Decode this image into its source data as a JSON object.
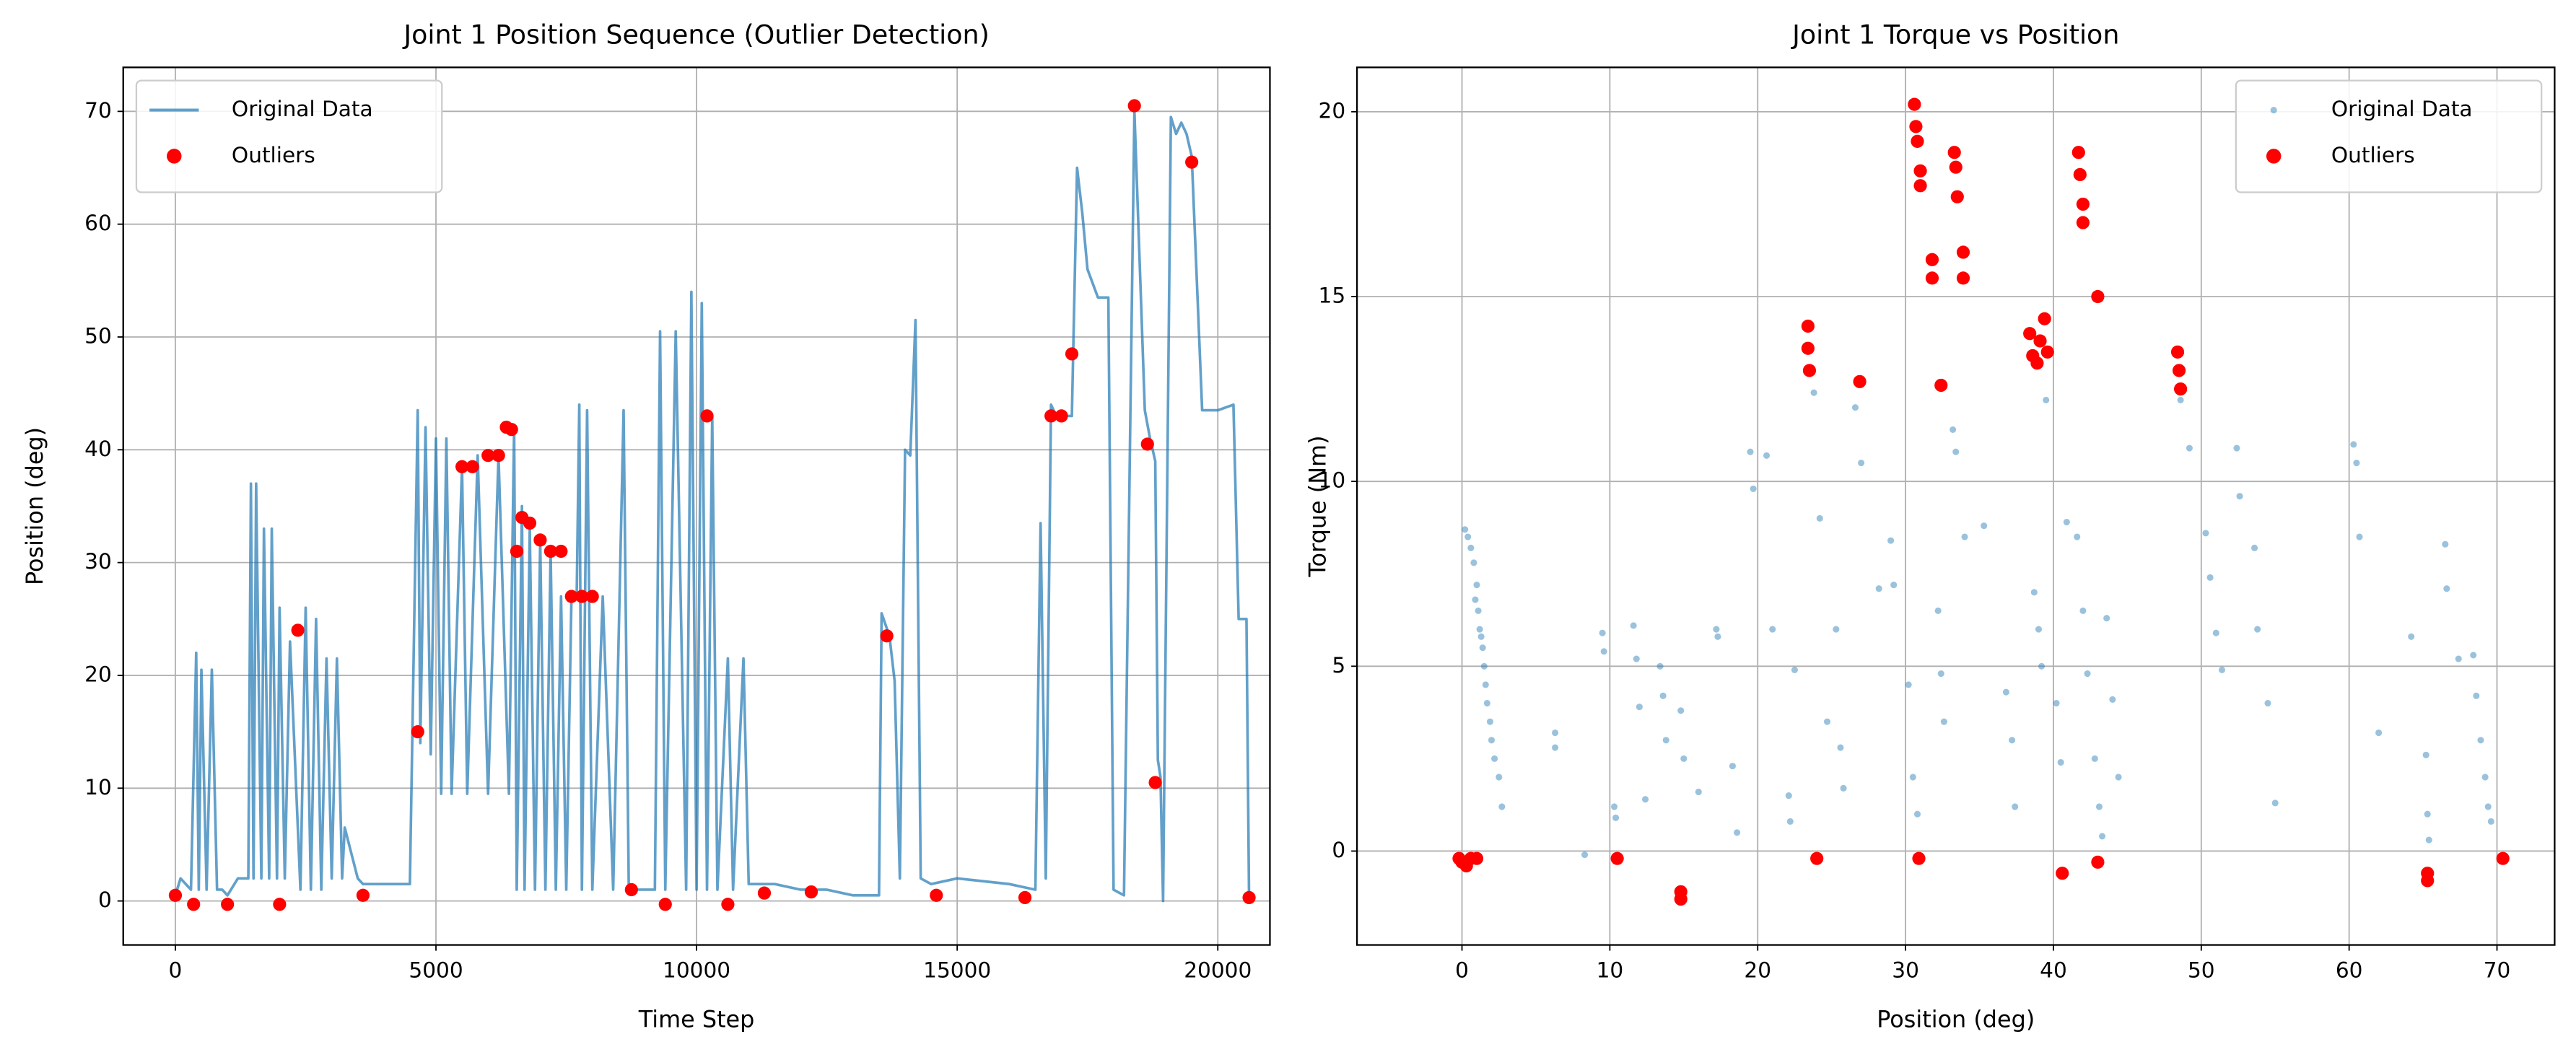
{
  "chart_data": [
    {
      "type": "line",
      "title": "Joint 1 Position Sequence (Outlier Detection)",
      "xlabel": "Time Step",
      "ylabel": "Position (deg)",
      "xlim": [
        -1000,
        21000
      ],
      "ylim": [
        -3.9,
        73.9
      ],
      "xticks": [
        0,
        5000,
        10000,
        15000,
        20000
      ],
      "yticks": [
        0,
        10,
        20,
        30,
        40,
        50,
        60,
        70
      ],
      "grid": true,
      "legend": "upper left",
      "series": [
        {
          "name": "Original Data",
          "type": "line",
          "color": "#1f77b4",
          "x": [
            0,
            100,
            300,
            400,
            450,
            500,
            600,
            700,
            800,
            900,
            1000,
            1200,
            1400,
            1450,
            1500,
            1550,
            1650,
            1700,
            1800,
            1850,
            1950,
            2000,
            2100,
            2200,
            2400,
            2500,
            2600,
            2700,
            2800,
            2900,
            3000,
            3100,
            3200,
            3250,
            3500,
            3600,
            4000,
            4500,
            4650,
            4700,
            4800,
            4900,
            5000,
            5100,
            5200,
            5300,
            5500,
            5600,
            5800,
            6000,
            6200,
            6400,
            6500,
            6550,
            6650,
            6700,
            6800,
            6900,
            7000,
            7100,
            7200,
            7300,
            7400,
            7500,
            7600,
            7700,
            7750,
            7800,
            7900,
            8000,
            8200,
            8400,
            8600,
            8700,
            8800,
            9200,
            9300,
            9400,
            9600,
            9800,
            9900,
            10000,
            10100,
            10200,
            10300,
            10400,
            10600,
            10700,
            10900,
            11000,
            11500,
            12000,
            12500,
            13000,
            13500,
            13550,
            13700,
            13800,
            13900,
            14000,
            14100,
            14200,
            14300,
            14500,
            15000,
            16000,
            16500,
            16600,
            16700,
            16800,
            16900,
            17200,
            17300,
            17400,
            17500,
            17700,
            17900,
            18000,
            18200,
            18400,
            18600,
            18700,
            18800,
            18850,
            18900,
            18950,
            19100,
            19200,
            19300,
            19400,
            19500,
            19700,
            20000,
            20300,
            20400,
            20550,
            20600
          ],
          "values": [
            0.5,
            2,
            1,
            22,
            1,
            20.5,
            1,
            20.5,
            1,
            1,
            0.5,
            2,
            2,
            37,
            2,
            37,
            2,
            33,
            2,
            33,
            2,
            26,
            2,
            23,
            1,
            26,
            1,
            25,
            1,
            21.5,
            2,
            21.5,
            2,
            6.5,
            2,
            1.5,
            1.5,
            1.5,
            43.5,
            14,
            42,
            13,
            41,
            9.5,
            41,
            9.5,
            38.5,
            9.5,
            39.5,
            9.5,
            39.5,
            9.5,
            42,
            1,
            35,
            1,
            33,
            1,
            32,
            1,
            31,
            1,
            27,
            1,
            27,
            27,
            44,
            1,
            43.5,
            1,
            27,
            1,
            43.5,
            1,
            1,
            1,
            50.5,
            1,
            50.5,
            1,
            54,
            1,
            53,
            1,
            43,
            1,
            21.5,
            1,
            21.5,
            1.5,
            1.5,
            1,
            1,
            0.5,
            0.5,
            25.5,
            23.5,
            19.5,
            2,
            40,
            39.5,
            51.5,
            2,
            1.5,
            2,
            1.5,
            1,
            33.5,
            2,
            44,
            43,
            43,
            65,
            61,
            56,
            53.5,
            53.5,
            1,
            0.5,
            70,
            43.5,
            41,
            39,
            12.5,
            11,
            0,
            69.5,
            68,
            69,
            68,
            66,
            43.5,
            43.5,
            44,
            25,
            25,
            0
          ]
        },
        {
          "name": "Outliers",
          "type": "scatter",
          "color": "#ff0000",
          "x": [
            0,
            350,
            1000,
            2000,
            2350,
            3600,
            4650,
            5500,
            5700,
            6000,
            6200,
            6350,
            6450,
            6550,
            6650,
            6800,
            7000,
            7200,
            7400,
            7600,
            7800,
            8000,
            8750,
            9400,
            10200,
            10600,
            11300,
            12200,
            13650,
            14600,
            16300,
            16800,
            17000,
            17200,
            18400,
            18650,
            18800,
            19500,
            20600
          ],
          "values": [
            0.5,
            -0.3,
            -0.3,
            -0.3,
            24,
            0.5,
            15,
            38.5,
            38.5,
            39.5,
            39.5,
            42,
            41.8,
            31,
            34,
            33.5,
            32,
            31,
            31,
            27,
            27,
            27,
            1,
            -0.3,
            43,
            -0.3,
            0.7,
            0.8,
            23.5,
            0.5,
            0.3,
            43,
            43,
            48.5,
            70.5,
            40.5,
            10.5,
            65.5,
            0.3
          ]
        }
      ]
    },
    {
      "type": "scatter",
      "title": "Joint 1 Torque vs Position",
      "xlabel": "Position (deg)",
      "ylabel": "Torque (Nm)",
      "xlim": [
        -7.1,
        73.9
      ],
      "ylim": [
        -2.54,
        21.2
      ],
      "xticks": [
        0,
        10,
        20,
        30,
        40,
        50,
        60,
        70
      ],
      "yticks": [
        0,
        5,
        10,
        15,
        20
      ],
      "grid": true,
      "legend": "upper right",
      "series": [
        {
          "name": "Original Data",
          "type": "scatter",
          "color": "#1f77b4",
          "x": [
            0.2,
            0.4,
            0.6,
            0.8,
            1,
            1.1,
            1.2,
            1.4,
            1.5,
            1.6,
            1.7,
            1.9,
            2,
            2.2,
            2.5,
            2.7,
            0.9,
            1.3,
            6.3,
            6.3,
            8.3,
            9.5,
            9.6,
            10.3,
            10.4,
            11.6,
            11.8,
            12,
            12.4,
            13.4,
            13.6,
            13.8,
            14.8,
            15,
            16,
            17.2,
            17.3,
            18.3,
            18.6,
            19.5,
            19.7,
            20.6,
            21,
            22.1,
            22.2,
            22.5,
            23.8,
            24.2,
            24.7,
            25.3,
            25.6,
            25.8,
            26.6,
            27,
            28.2,
            29,
            29.2,
            30.2,
            30.5,
            30.8,
            32.2,
            32.4,
            32.6,
            33.2,
            33.4,
            34,
            35.3,
            36.8,
            37.2,
            37.4,
            38.7,
            39,
            39.2,
            39.5,
            40.2,
            40.5,
            40.9,
            41.6,
            42,
            42.3,
            42.8,
            43.1,
            43.3,
            43.6,
            44,
            44.4,
            48.6,
            49.2,
            50.3,
            50.6,
            51,
            51.4,
            52.4,
            52.6,
            53.6,
            53.8,
            54.5,
            55,
            60.3,
            60.5,
            60.7,
            62,
            64.2,
            65.2,
            65.3,
            65.4,
            66.5,
            66.6,
            67.4,
            68.4,
            68.6,
            68.9,
            69.2,
            69.4,
            69.6
          ],
          "values": [
            8.7,
            8.5,
            8.2,
            7.8,
            7.2,
            6.5,
            6,
            5.5,
            5,
            4.5,
            4,
            3.5,
            3,
            2.5,
            2,
            1.2,
            6.8,
            5.8,
            3.2,
            2.8,
            -0.1,
            5.9,
            5.4,
            1.2,
            0.9,
            6.1,
            5.2,
            3.9,
            1.4,
            5,
            4.2,
            3,
            3.8,
            2.5,
            1.6,
            6,
            5.8,
            2.3,
            0.5,
            10.8,
            9.8,
            10.7,
            6,
            1.5,
            0.8,
            4.9,
            12.4,
            9,
            3.5,
            6,
            2.8,
            1.7,
            12,
            10.5,
            7.1,
            8.4,
            7.2,
            4.5,
            2,
            1,
            6.5,
            4.8,
            3.5,
            11.4,
            10.8,
            8.5,
            8.8,
            4.3,
            3,
            1.2,
            7,
            6,
            5,
            12.2,
            4,
            2.4,
            8.9,
            8.5,
            6.5,
            4.8,
            2.5,
            1.2,
            0.4,
            6.3,
            4.1,
            2,
            12.2,
            10.9,
            8.6,
            7.4,
            5.9,
            4.9,
            10.9,
            9.6,
            8.2,
            6,
            4,
            1.3,
            11,
            10.5,
            8.5,
            3.2,
            5.8,
            2.6,
            1,
            0.3,
            8.3,
            7.1,
            5.2,
            5.3,
            4.2,
            3,
            2,
            1.2,
            0.8
          ]
        },
        {
          "name": "Outliers",
          "type": "scatter",
          "color": "#ff0000",
          "x": [
            -0.2,
            0,
            0.3,
            0.6,
            1,
            10.5,
            14.8,
            14.8,
            23.4,
            23.4,
            23.5,
            24,
            26.9,
            30.6,
            30.7,
            30.8,
            31,
            31,
            30.9,
            31.8,
            31.8,
            32.4,
            33.3,
            33.4,
            33.5,
            33.9,
            33.9,
            38.4,
            38.6,
            38.9,
            39.1,
            39.4,
            39.6,
            40.6,
            41.7,
            41.8,
            42,
            42,
            43,
            43,
            48.4,
            48.5,
            48.6,
            65.3,
            65.3,
            70.4
          ],
          "values": [
            -0.2,
            -0.3,
            -0.4,
            -0.2,
            -0.2,
            -0.2,
            -1.1,
            -1.3,
            14.2,
            13.6,
            13,
            -0.2,
            12.7,
            20.2,
            19.6,
            19.2,
            18.4,
            18,
            -0.2,
            16,
            15.5,
            12.6,
            18.9,
            18.5,
            17.7,
            16.2,
            15.5,
            14,
            13.4,
            13.2,
            13.8,
            14.4,
            13.5,
            -0.6,
            18.9,
            18.3,
            17.5,
            17,
            15,
            -0.3,
            13.5,
            13,
            12.5,
            -0.6,
            -0.8,
            -0.2
          ]
        }
      ]
    }
  ]
}
